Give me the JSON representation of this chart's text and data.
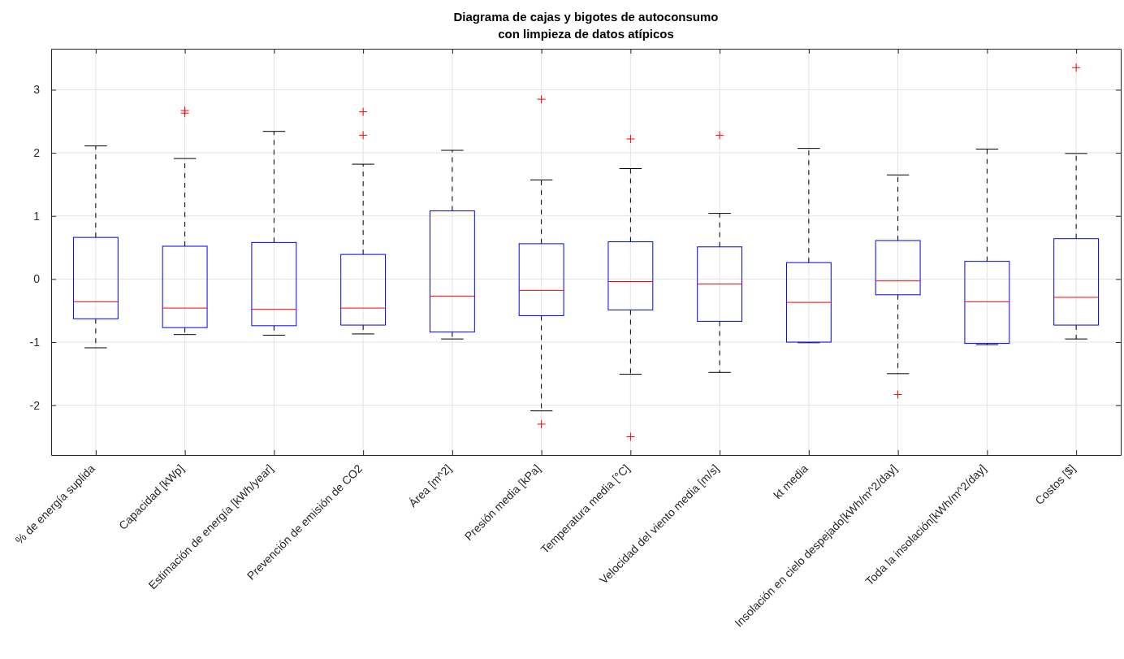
{
  "chart_data": {
    "type": "box",
    "title": "Diagrama de cajas y bigotes de autoconsumo",
    "subtitle": "con limpieza de datos atípicos",
    "categories": [
      "% de energía suplida",
      "Capacidad [kWp]",
      "Estimación de energía [kWh/year]",
      "Prevención de emisión de CO2",
      "Área [m^2]",
      "Presión media [kPa]",
      "Temperatura media [°C]",
      "Velocidad del viento media [m/s]",
      "kt media",
      "Insolación en cielo despejado[kWh/m^2/day]",
      "Toda la insolación[kWh/m^2/day]",
      "Costos [$]"
    ],
    "boxes": [
      {
        "low": -1.09,
        "q1": -0.63,
        "median": -0.36,
        "q3": 0.66,
        "high": 2.11
      },
      {
        "low": -0.88,
        "q1": -0.77,
        "median": -0.46,
        "q3": 0.52,
        "high": 1.91,
        "outliers": [
          2.63,
          2.67
        ]
      },
      {
        "low": -0.89,
        "q1": -0.74,
        "median": -0.48,
        "q3": 0.58,
        "high": 2.34
      },
      {
        "low": -0.87,
        "q1": -0.73,
        "median": -0.46,
        "q3": 0.39,
        "high": 1.82,
        "outliers": [
          2.28,
          2.65
        ]
      },
      {
        "low": -0.95,
        "q1": -0.84,
        "median": -0.27,
        "q3": 1.08,
        "high": 2.04
      },
      {
        "low": -2.09,
        "q1": -0.58,
        "median": -0.18,
        "q3": 0.56,
        "high": 1.57,
        "outliers": [
          -2.3,
          2.85
        ]
      },
      {
        "low": -1.51,
        "q1": -0.49,
        "median": -0.04,
        "q3": 0.59,
        "high": 1.75,
        "outliers": [
          -2.5,
          2.22
        ]
      },
      {
        "low": -1.48,
        "q1": -0.67,
        "median": -0.08,
        "q3": 0.51,
        "high": 1.04,
        "outliers": [
          2.28
        ]
      },
      {
        "low": -1.01,
        "q1": -1.0,
        "median": -0.37,
        "q3": 0.26,
        "high": 2.07
      },
      {
        "low": -1.5,
        "q1": -0.25,
        "median": -0.03,
        "q3": 0.61,
        "high": 1.65,
        "outliers": [
          -1.83
        ]
      },
      {
        "low": -1.04,
        "q1": -1.02,
        "median": -0.36,
        "q3": 0.28,
        "high": 2.06
      },
      {
        "low": -0.95,
        "q1": -0.73,
        "median": -0.29,
        "q3": 0.64,
        "high": 1.99,
        "outliers": [
          3.35
        ]
      }
    ],
    "ylim": [
      -2.79,
      3.65
    ],
    "yticks": [
      -2,
      -1,
      0,
      1,
      2,
      3
    ],
    "grid": true,
    "marker": "cross"
  }
}
